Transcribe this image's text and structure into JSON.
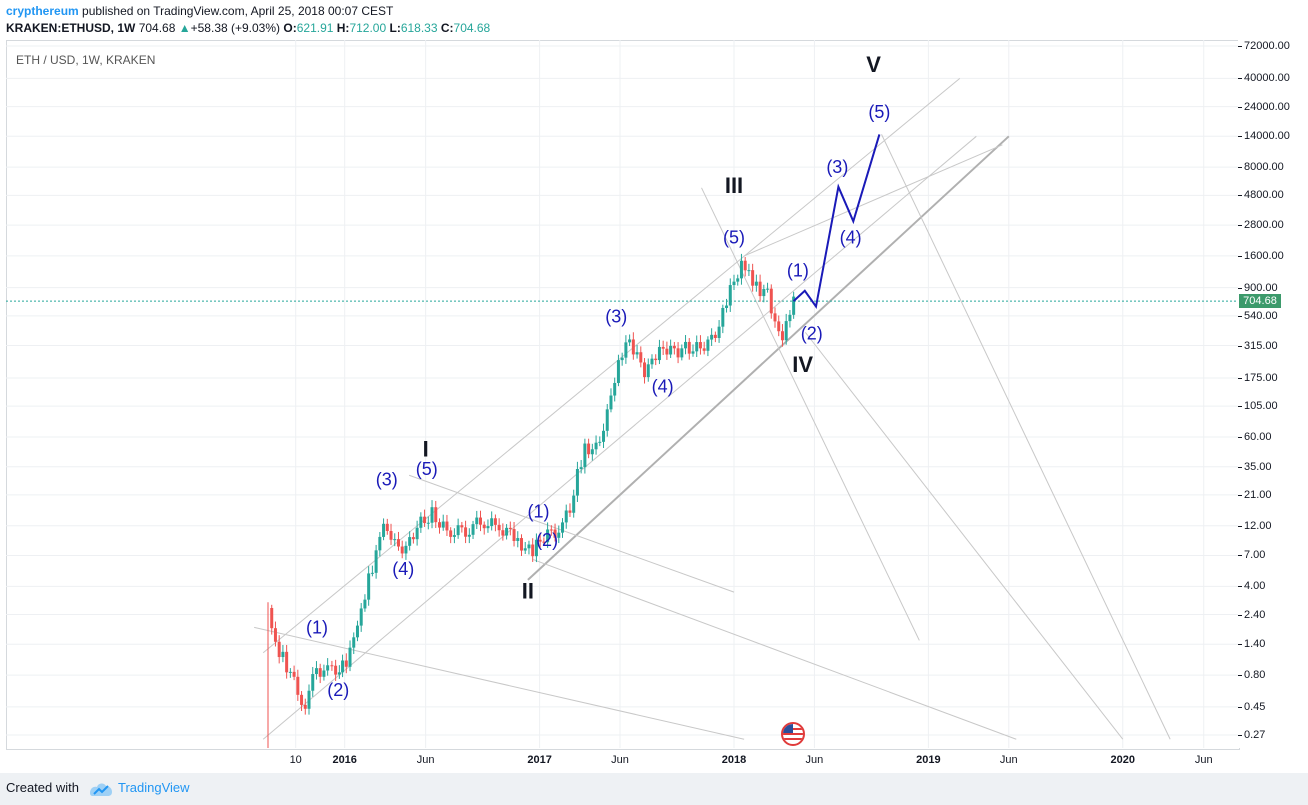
{
  "header": {
    "author": "crypthereum",
    "published_text": " published on TradingView.com, April 25, 2018 00:07 CEST",
    "symbol_line": "KRAKEN:ETHUSD, 1W",
    "price": "704.68",
    "change": "+58.38 (+9.03%)",
    "o_label": "O:",
    "o_value": "621.91",
    "h_label": "H:",
    "h_value": "712.00",
    "l_label": "L:",
    "l_value": "618.33",
    "c_label": "C:",
    "c_value": "704.68",
    "up_arrow": "▲"
  },
  "chart_title": "ETH / USD, 1W, KRAKEN",
  "footer": {
    "created_with": "Created with",
    "brand": "TradingView"
  },
  "current_price_tag": "704.68",
  "colors": {
    "up": "#26a69a",
    "down": "#ef5350",
    "wave": "#1a1ab8",
    "channel": "#c0c0c0",
    "price_line": "#26a69a"
  },
  "chart_data": {
    "type": "candlestick",
    "title": "ETH / USD, 1W, KRAKEN",
    "y_scale": "log",
    "ylim": [
      0.22,
      80000
    ],
    "y_ticks": [
      "72000.00",
      "40000.00",
      "24000.00",
      "14000.00",
      "8000.00",
      "4800.00",
      "2800.00",
      "1600.00",
      "900.00",
      "540.00",
      "315.00",
      "175.00",
      "105.00",
      "60.00",
      "35.00",
      "21.00",
      "12.00",
      "7.00",
      "4.00",
      "2.40",
      "1.40",
      "0.80",
      "0.45",
      "0.27"
    ],
    "x_ticks": [
      {
        "label": "10",
        "bold": false
      },
      {
        "label": "2016",
        "bold": true
      },
      {
        "label": "Jun",
        "bold": false
      },
      {
        "label": "2017",
        "bold": true
      },
      {
        "label": "Jun",
        "bold": false
      },
      {
        "label": "2018",
        "bold": true
      },
      {
        "label": "Jun",
        "bold": false
      },
      {
        "label": "2019",
        "bold": true
      },
      {
        "label": "Jun",
        "bold": false
      },
      {
        "label": "2020",
        "bold": true
      },
      {
        "label": "Jun",
        "bold": false
      }
    ],
    "x_range": [
      "2015-08-01",
      "2020-09-15"
    ],
    "last_price": 704.68,
    "price_series": [
      [
        "2015-08-10",
        2.7
      ],
      [
        "2015-08-24",
        1.3
      ],
      [
        "2015-09-07",
        1.1
      ],
      [
        "2015-10-05",
        0.6
      ],
      [
        "2015-10-19",
        0.45
      ],
      [
        "2015-11-02",
        0.9
      ],
      [
        "2015-12-01",
        0.85
      ],
      [
        "2015-12-21",
        0.9
      ],
      [
        "2016-01-04",
        0.95
      ],
      [
        "2016-01-18",
        1.5
      ],
      [
        "2016-02-01",
        2.4
      ],
      [
        "2016-02-15",
        4.5
      ],
      [
        "2016-03-07",
        9
      ],
      [
        "2016-03-14",
        14
      ],
      [
        "2016-04-04",
        8.5
      ],
      [
        "2016-04-25",
        8
      ],
      [
        "2016-05-16",
        12
      ],
      [
        "2016-06-06",
        14
      ],
      [
        "2016-06-13",
        15
      ],
      [
        "2016-06-20",
        12
      ],
      [
        "2016-07-18",
        11
      ],
      [
        "2016-08-15",
        11
      ],
      [
        "2016-09-12",
        13
      ],
      [
        "2016-10-10",
        12
      ],
      [
        "2016-11-14",
        10
      ],
      [
        "2016-12-05",
        8
      ],
      [
        "2016-12-19",
        7.5
      ],
      [
        "2017-01-09",
        10
      ],
      [
        "2017-02-06",
        11
      ],
      [
        "2017-02-27",
        16
      ],
      [
        "2017-03-13",
        30
      ],
      [
        "2017-03-27",
        50
      ],
      [
        "2017-04-17",
        48
      ],
      [
        "2017-05-08",
        90
      ],
      [
        "2017-05-22",
        180
      ],
      [
        "2017-06-12",
        350
      ],
      [
        "2017-06-26",
        280
      ],
      [
        "2017-07-17",
        200
      ],
      [
        "2017-07-31",
        225
      ],
      [
        "2017-08-21",
        300
      ],
      [
        "2017-09-11",
        280
      ],
      [
        "2017-10-02",
        300
      ],
      [
        "2017-10-23",
        300
      ],
      [
        "2017-11-13",
        330
      ],
      [
        "2017-12-04",
        450
      ],
      [
        "2017-12-18",
        700
      ],
      [
        "2018-01-08",
        1200
      ],
      [
        "2018-01-15",
        1350
      ],
      [
        "2018-01-29",
        1100
      ],
      [
        "2018-02-12",
        900
      ],
      [
        "2018-03-05",
        800
      ],
      [
        "2018-03-19",
        500
      ],
      [
        "2018-04-02",
        380
      ],
      [
        "2018-04-16",
        620
      ],
      [
        "2018-04-23",
        704.68
      ]
    ],
    "projection_path": [
      [
        "2018-04-23",
        704.68
      ],
      [
        "2018-05-14",
        850
      ],
      [
        "2018-06-04",
        640
      ],
      [
        "2018-07-16",
        5600
      ],
      [
        "2018-08-13",
        3000
      ],
      [
        "2018-10-01",
        14500
      ]
    ],
    "annotations": [
      {
        "text": "I",
        "date": "2016-06-01",
        "price": 42,
        "style": "major"
      },
      {
        "text": "II",
        "date": "2016-12-10",
        "price": 3.2,
        "style": "major"
      },
      {
        "text": "III",
        "date": "2018-01-01",
        "price": 5000,
        "style": "major"
      },
      {
        "text": "IV",
        "date": "2018-05-10",
        "price": 195,
        "style": "major"
      },
      {
        "text": "V",
        "date": "2018-09-20",
        "price": 45000,
        "style": "major"
      },
      {
        "text": "(1)",
        "date": "2015-11-10",
        "price": 1.7,
        "style": "minor"
      },
      {
        "text": "(2)",
        "date": "2015-12-20",
        "price": 0.55,
        "style": "minor"
      },
      {
        "text": "(3)",
        "date": "2016-03-20",
        "price": 25,
        "style": "minor"
      },
      {
        "text": "(4)",
        "date": "2016-04-20",
        "price": 4.9,
        "style": "minor"
      },
      {
        "text": "(5)",
        "date": "2016-06-03",
        "price": 30,
        "style": "minor"
      },
      {
        "text": "(1)",
        "date": "2016-12-30",
        "price": 14,
        "style": "minor"
      },
      {
        "text": "(2)",
        "date": "2017-01-15",
        "price": 8.3,
        "style": "minor"
      },
      {
        "text": "(3)",
        "date": "2017-05-25",
        "price": 480,
        "style": "minor"
      },
      {
        "text": "(4)",
        "date": "2017-08-20",
        "price": 135,
        "style": "minor"
      },
      {
        "text": "(5)",
        "date": "2018-01-01",
        "price": 2000,
        "style": "minor"
      },
      {
        "text": "(1)",
        "date": "2018-05-01",
        "price": 1100,
        "style": "minor"
      },
      {
        "text": "(2)",
        "date": "2018-05-27",
        "price": 350,
        "style": "minor"
      },
      {
        "text": "(3)",
        "date": "2018-07-14",
        "price": 7200,
        "style": "minor"
      },
      {
        "text": "(4)",
        "date": "2018-08-08",
        "price": 2000,
        "style": "minor"
      },
      {
        "text": "(5)",
        "date": "2018-10-01",
        "price": 19500,
        "style": "minor"
      }
    ],
    "trend_lines": [
      [
        [
          "2015-08-01",
          0.25
        ],
        [
          "2019-04-01",
          14000
        ]
      ],
      [
        [
          "2015-08-01",
          1.2
        ],
        [
          "2019-03-01",
          40000
        ]
      ],
      [
        [
          "2016-12-10",
          4.5
        ],
        [
          "2019-06-01",
          14000
        ]
      ],
      [
        [
          "2018-01-20",
          1600
        ],
        [
          "2019-05-20",
          12000
        ]
      ],
      [
        [
          "2015-07-15",
          1.9
        ],
        [
          "2018-01-20",
          0.25
        ]
      ],
      [
        [
          "2016-05-01",
          30
        ],
        [
          "2018-01-01",
          3.6
        ]
      ],
      [
        [
          "2016-12-20",
          6.5
        ],
        [
          "2019-06-15",
          0.25
        ]
      ],
      [
        [
          "2017-11-01",
          5500
        ],
        [
          "2018-12-15",
          1.5
        ]
      ],
      [
        [
          "2018-05-15",
          400
        ],
        [
          "2020-01-01",
          0.25
        ]
      ],
      [
        [
          "2018-10-05",
          14500
        ],
        [
          "2020-03-30",
          0.25
        ]
      ]
    ]
  }
}
